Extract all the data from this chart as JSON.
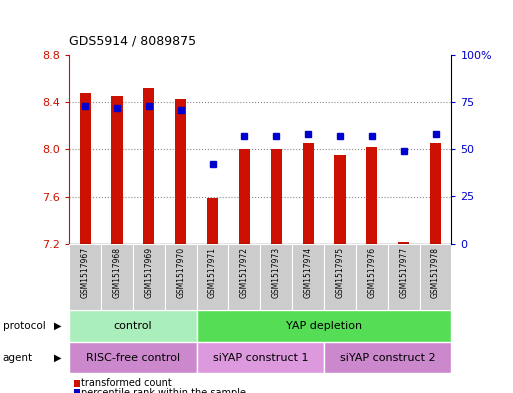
{
  "title": "GDS5914 / 8089875",
  "samples": [
    "GSM1517967",
    "GSM1517968",
    "GSM1517969",
    "GSM1517970",
    "GSM1517971",
    "GSM1517972",
    "GSM1517973",
    "GSM1517974",
    "GSM1517975",
    "GSM1517976",
    "GSM1517977",
    "GSM1517978"
  ],
  "bar_values": [
    8.48,
    8.45,
    8.52,
    8.43,
    7.59,
    8.0,
    8.0,
    8.05,
    7.95,
    8.02,
    7.21,
    8.05
  ],
  "dot_values": [
    73,
    72,
    73,
    71,
    42,
    57,
    57,
    58,
    57,
    57,
    49,
    58
  ],
  "ylim_left": [
    7.2,
    8.8
  ],
  "ylim_right": [
    0,
    100
  ],
  "yticks_left": [
    7.2,
    7.6,
    8.0,
    8.4,
    8.8
  ],
  "yticks_right": [
    0,
    25,
    50,
    75,
    100
  ],
  "yticklabels_right": [
    "0",
    "25",
    "50",
    "75",
    "100%"
  ],
  "bar_color": "#cc1100",
  "dot_color": "#0000cc",
  "bar_bottom": 7.2,
  "grid_color": "#888888",
  "bg_color": "#ffffff",
  "protocol_row": {
    "groups": [
      {
        "label": "control",
        "start": 0,
        "end": 4,
        "color": "#aaeebb"
      },
      {
        "label": "YAP depletion",
        "start": 4,
        "end": 12,
        "color": "#55dd55"
      }
    ]
  },
  "agent_row": {
    "groups": [
      {
        "label": "RISC-free control",
        "start": 0,
        "end": 4,
        "color": "#cc88cc"
      },
      {
        "label": "siYAP construct 1",
        "start": 4,
        "end": 8,
        "color": "#dd99dd"
      },
      {
        "label": "siYAP construct 2",
        "start": 8,
        "end": 12,
        "color": "#cc88cc"
      }
    ]
  },
  "legend_items": [
    {
      "label": "transformed count",
      "color": "#cc1100"
    },
    {
      "label": "percentile rank within the sample",
      "color": "#0000cc"
    }
  ],
  "figsize": [
    5.13,
    3.93
  ],
  "dpi": 100
}
